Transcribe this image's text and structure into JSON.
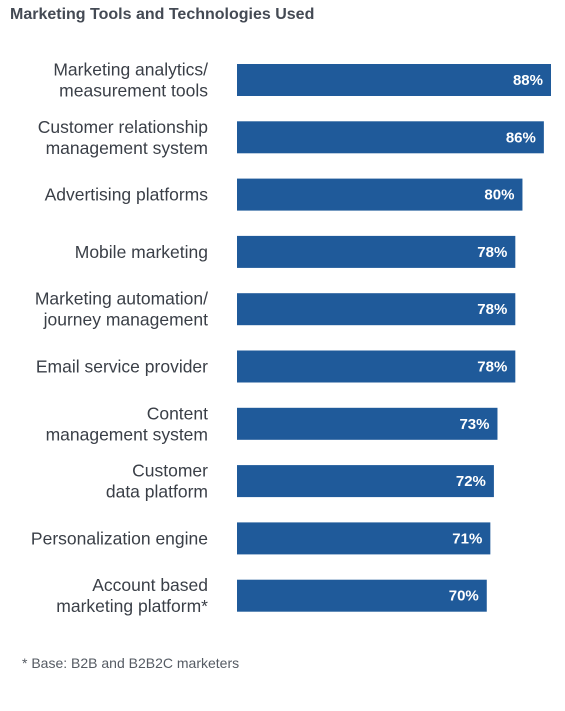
{
  "chart_data": {
    "type": "bar",
    "orientation": "horizontal",
    "title": "Marketing Tools and Technologies Used",
    "categories": [
      [
        "Marketing analytics/",
        "measurement tools"
      ],
      [
        "Customer relationship",
        "management system"
      ],
      [
        "Advertising platforms"
      ],
      [
        "Mobile marketing"
      ],
      [
        "Marketing automation/",
        "journey management"
      ],
      [
        "Email service provider"
      ],
      [
        "Content",
        "management system"
      ],
      [
        "Customer",
        "data platform"
      ],
      [
        "Personalization engine"
      ],
      [
        "Account based",
        "marketing platform*"
      ]
    ],
    "values": [
      88,
      86,
      80,
      78,
      78,
      78,
      73,
      72,
      71,
      70
    ],
    "value_labels": [
      "88%",
      "86%",
      "80%",
      "78%",
      "78%",
      "78%",
      "73%",
      "72%",
      "71%",
      "70%"
    ],
    "xlim": [
      0,
      88
    ],
    "bar_color": "#1f5a9a",
    "grid": false,
    "footnote": "* Base: B2B and B2B2C marketers"
  }
}
